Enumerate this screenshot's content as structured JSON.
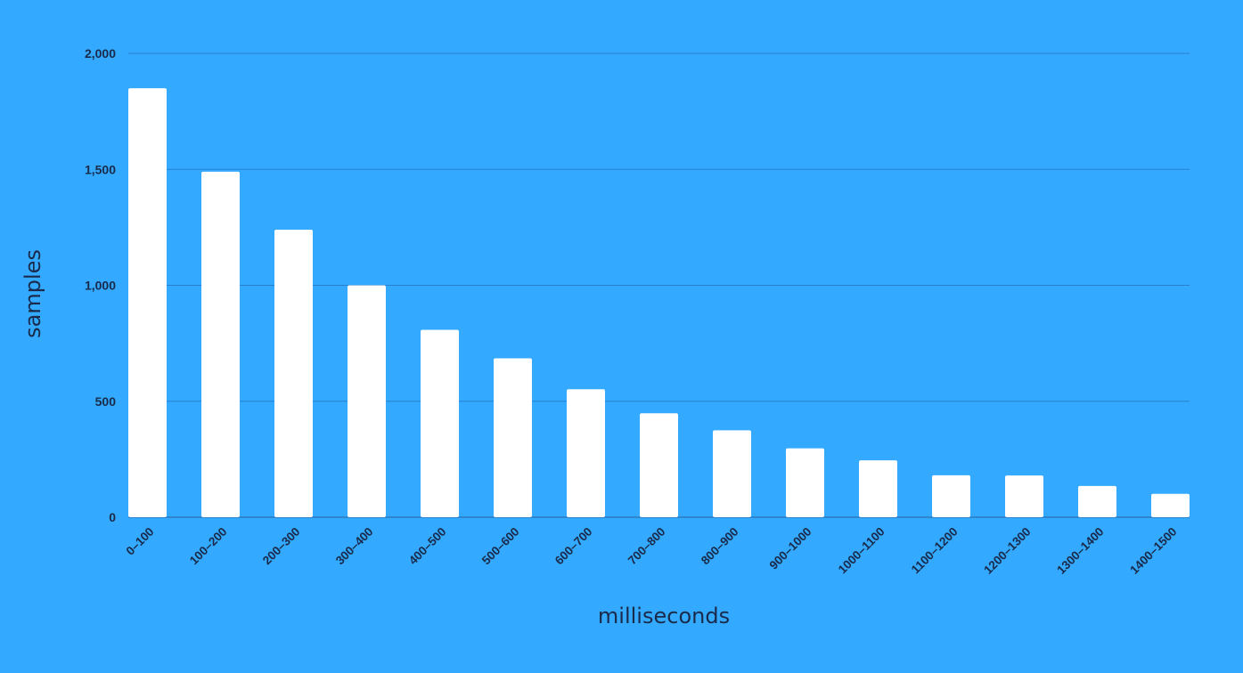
{
  "colors": {
    "background": "#33aaff",
    "bar": "#ffffff",
    "text": "#1a2a4a",
    "grid": "#2a7fcc"
  },
  "chart_data": {
    "type": "bar",
    "xlabel": "milliseconds",
    "ylabel": "samples",
    "ylim": [
      0,
      2000
    ],
    "yticks": [
      0,
      500,
      1000,
      1500,
      2000
    ],
    "ytick_labels": [
      "0",
      "500",
      "1,000",
      "1,500",
      "2,000"
    ],
    "grid": true,
    "legend": "none",
    "categories": [
      "0–100",
      "100–200",
      "200–300",
      "300–400",
      "400–500",
      "500–600",
      "600–700",
      "700–800",
      "800–900",
      "900–1000",
      "1000–1100",
      "1100–1200",
      "1200–1300",
      "1300–1400",
      "1400–1500"
    ],
    "values": [
      1850,
      1490,
      1240,
      1000,
      808,
      685,
      552,
      448,
      375,
      297,
      245,
      181,
      180,
      135,
      101
    ]
  }
}
